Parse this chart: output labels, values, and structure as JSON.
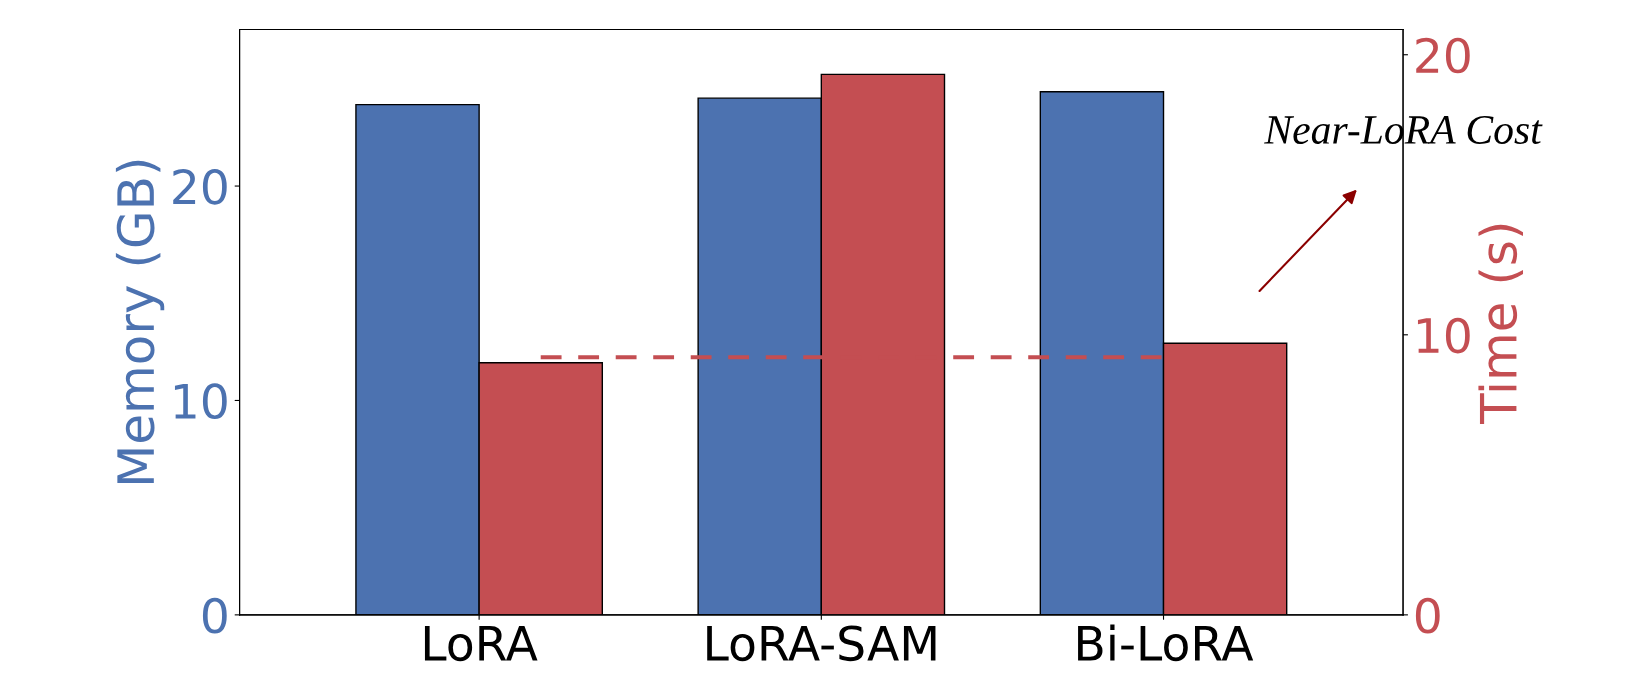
{
  "chart_data": {
    "type": "bar",
    "categories": [
      "LoRA",
      "LoRA-SAM",
      "Bi-LoRA"
    ],
    "ylabel": "Memory (GB)",
    "y2label": "Time (s)",
    "series": [
      {
        "color": "#4c72b0",
        "values": [
          23.8,
          24.1,
          24.4
        ]
      },
      {
        "color": "#c44e52",
        "values": [
          9.0,
          19.3,
          9.7
        ],
        "axis": "y2"
      }
    ],
    "ylim": [
      0,
      27.3
    ],
    "yticks": [
      0,
      10,
      20
    ],
    "y2lim": [
      0,
      20.9
    ],
    "y2ticks": [
      0,
      10,
      20
    ],
    "ref_lines": [
      {
        "axis": "y2",
        "value": 9.2,
        "color": "#c44e52",
        "line_style": "dashed"
      }
    ],
    "annotations": [
      "Near-LoRA Cost"
    ],
    "grid": false,
    "legend": false
  }
}
